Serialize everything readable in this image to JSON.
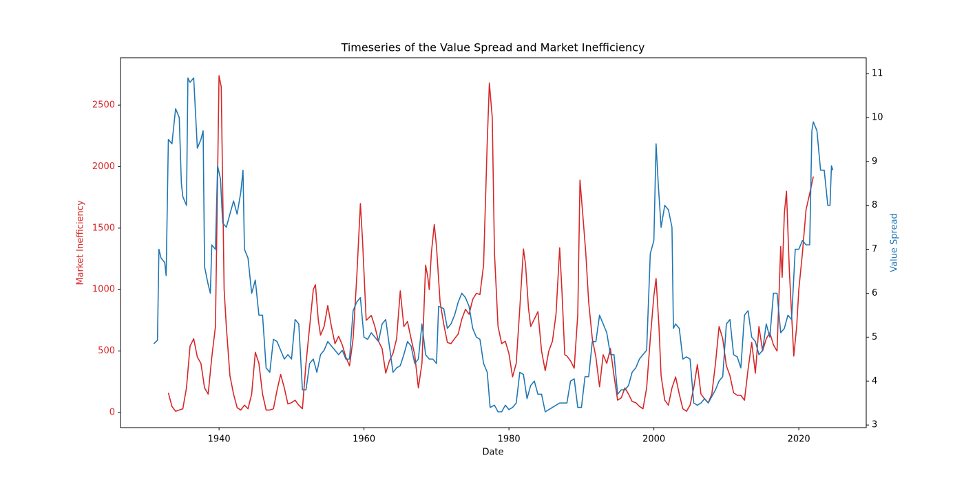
{
  "chart_data": {
    "type": "line",
    "title": "Timeseries of the Value Spread and Market Inefficiency",
    "xlabel": "Date",
    "ylabel": "Market Inefficiency",
    "y2label": "Value Spread",
    "ylabel_color": "#d62728",
    "y2label_color": "#1f77b4",
    "xlim": [
      1926.4,
      2029.3
    ],
    "xticks": [
      1940,
      1960,
      1980,
      2000,
      2020
    ],
    "ylim": [
      -123,
      2886
    ],
    "yticks": [
      0,
      500,
      1000,
      1500,
      2000,
      2500
    ],
    "y2lim": [
      2.94,
      11.36
    ],
    "y2ticks": [
      3,
      4,
      5,
      6,
      7,
      8,
      9,
      10,
      11
    ],
    "series": [
      {
        "color": "#d62728",
        "axis": "y",
        "x": [
          1933,
          1933.5,
          1934,
          1935,
          1935.5,
          1936,
          1936.5,
          1937,
          1937.5,
          1938,
          1938.5,
          1939,
          1939.5,
          1940,
          1940.3,
          1940.7,
          1941,
          1941.5,
          1942,
          1942.5,
          1943,
          1943.5,
          1944,
          1944.5,
          1945,
          1945.5,
          1946,
          1946.5,
          1947,
          1947.5,
          1948,
          1948.5,
          1949,
          1949.5,
          1950,
          1950.5,
          1951,
          1951.5,
          1952,
          1952.5,
          1953,
          1953.3,
          1953.7,
          1954,
          1954.5,
          1955,
          1955.5,
          1956,
          1956.5,
          1957,
          1957.5,
          1958,
          1958.5,
          1959,
          1959.5,
          1959.8,
          1960.3,
          1961,
          1961.5,
          1962,
          1962.5,
          1963,
          1963.5,
          1964,
          1964.5,
          1965,
          1965.5,
          1966,
          1966.5,
          1967,
          1967.5,
          1968,
          1968.5,
          1968.8,
          1969,
          1969.3,
          1969.7,
          1970,
          1970.5,
          1971,
          1971.5,
          1972,
          1972.5,
          1973,
          1973.5,
          1974,
          1974.5,
          1975,
          1975.5,
          1976,
          1976.5,
          1977,
          1977.3,
          1977.7,
          1978,
          1978.5,
          1979,
          1979.5,
          1980,
          1980.5,
          1981,
          1981.5,
          1982,
          1982.3,
          1982.7,
          1983,
          1983.5,
          1984,
          1984.5,
          1985,
          1985.5,
          1986,
          1986.5,
          1987,
          1987.3,
          1987.7,
          1988,
          1988.5,
          1989,
          1989.5,
          1989.8,
          1990.2,
          1990.6,
          1991,
          1991.5,
          1992,
          1992.5,
          1993,
          1993.5,
          1994,
          1994.5,
          1995,
          1995.5,
          1996,
          1996.5,
          1997,
          1997.5,
          1998,
          1998.5,
          1999,
          1999.5,
          2000,
          2000.3,
          2000.7,
          2001,
          2001.5,
          2002,
          2002.5,
          2003,
          2003.5,
          2004,
          2004.5,
          2005,
          2005.5,
          2006,
          2006.5,
          2007,
          2007.5,
          2008,
          2008.5,
          2009,
          2009.5,
          2010,
          2010.5,
          2011,
          2011.5,
          2012,
          2012.5,
          2013,
          2013.5,
          2014,
          2014.5,
          2015,
          2015.5,
          2016,
          2016.5,
          2017,
          2017.5,
          2017.7,
          2018,
          2018.3,
          2018.7,
          2019,
          2019.3,
          2019.7,
          2020,
          2020.5,
          2021,
          2021.5,
          2022
        ],
        "values": [
          160,
          50,
          10,
          30,
          200,
          540,
          600,
          450,
          400,
          200,
          150,
          450,
          700,
          2740,
          2650,
          1000,
          700,
          300,
          150,
          40,
          20,
          60,
          30,
          150,
          490,
          400,
          150,
          20,
          20,
          30,
          180,
          310,
          200,
          70,
          80,
          100,
          60,
          30,
          400,
          700,
          1000,
          1040,
          750,
          630,
          700,
          870,
          700,
          560,
          620,
          550,
          450,
          380,
          600,
          1100,
          1700,
          1400,
          750,
          790,
          700,
          580,
          520,
          320,
          420,
          480,
          600,
          990,
          700,
          740,
          600,
          470,
          200,
          400,
          1200,
          1100,
          1000,
          1300,
          1530,
          1350,
          900,
          720,
          570,
          560,
          600,
          640,
          760,
          840,
          800,
          920,
          970,
          960,
          1200,
          2200,
          2680,
          2400,
          1300,
          700,
          560,
          580,
          480,
          290,
          400,
          850,
          1330,
          1200,
          850,
          700,
          760,
          820,
          500,
          340,
          500,
          580,
          800,
          1340,
          1000,
          470,
          460,
          420,
          360,
          800,
          1890,
          1600,
          1300,
          900,
          600,
          450,
          210,
          470,
          400,
          520,
          300,
          100,
          120,
          200,
          150,
          90,
          80,
          50,
          30,
          200,
          600,
          950,
          1090,
          700,
          300,
          100,
          60,
          200,
          290,
          150,
          30,
          10,
          60,
          200,
          390,
          150,
          110,
          80,
          150,
          400,
          700,
          600,
          380,
          300,
          160,
          140,
          140,
          100,
          350,
          570,
          320,
          700,
          500,
          600,
          650,
          550,
          500,
          1350,
          1100,
          1620,
          1800,
          1150,
          800,
          460,
          700,
          1000,
          1300,
          1650,
          1780,
          1920
        ]
      },
      {
        "color": "#1f77b4",
        "axis": "y2",
        "x": [
          1931,
          1931.5,
          1931.7,
          1932,
          1932.5,
          1932.7,
          1933,
          1933.5,
          1934,
          1934.5,
          1934.8,
          1935,
          1935.5,
          1935.7,
          1936,
          1936.5,
          1937,
          1937.5,
          1937.8,
          1938,
          1938.5,
          1938.8,
          1939,
          1939.5,
          1939.8,
          1940.2,
          1940.5,
          1941,
          1941.5,
          1942,
          1942.5,
          1943,
          1943.3,
          1943.5,
          1944,
          1944.5,
          1945,
          1945.5,
          1946,
          1946.5,
          1947,
          1947.5,
          1948,
          1948.5,
          1949,
          1949.5,
          1950,
          1950.5,
          1951,
          1951.5,
          1952,
          1952.5,
          1953,
          1953.5,
          1954,
          1954.5,
          1955,
          1955.5,
          1956,
          1956.5,
          1957,
          1957.5,
          1958,
          1958.5,
          1959,
          1959.5,
          1960,
          1960.5,
          1961,
          1961.5,
          1962,
          1962.5,
          1963,
          1963.5,
          1964,
          1964.5,
          1965,
          1965.5,
          1966,
          1966.5,
          1967,
          1967.5,
          1968,
          1968.5,
          1969,
          1969.5,
          1970,
          1970.3,
          1971,
          1971.5,
          1972,
          1972.5,
          1973,
          1973.5,
          1974,
          1974.5,
          1975,
          1975.5,
          1976,
          1976.5,
          1977,
          1977.4,
          1978,
          1978.5,
          1979,
          1979.5,
          1980,
          1980.5,
          1981,
          1981.5,
          1982,
          1982.5,
          1983,
          1983.5,
          1984,
          1984.5,
          1985,
          1985.5,
          1986,
          1986.5,
          1987,
          1987.5,
          1988,
          1988.5,
          1989,
          1989.5,
          1990,
          1990.5,
          1991,
          1991.5,
          1992,
          1992.5,
          1993,
          1993.5,
          1994,
          1994.5,
          1995,
          1995.5,
          1996,
          1996.5,
          1997,
          1997.5,
          1998,
          1998.5,
          1999,
          1999.5,
          2000,
          2000.3,
          2000.6,
          2001,
          2001.5,
          2002,
          2002.5,
          2002.7,
          2003,
          2003.5,
          2004,
          2004.5,
          2005,
          2005.5,
          2006,
          2006.5,
          2007,
          2007.5,
          2008,
          2008.5,
          2009,
          2009.5,
          2010,
          2010.5,
          2011,
          2011.5,
          2012,
          2012.5,
          2013,
          2013.5,
          2014,
          2014.5,
          2015,
          2015.5,
          2016,
          2016.5,
          2017,
          2017.5,
          2018,
          2018.5,
          2019,
          2019.5,
          2020,
          2020.5,
          2021,
          2021.5,
          2021.8,
          2022,
          2022.5,
          2023,
          2023.5,
          2024,
          2024.3,
          2024.5,
          2024.7
        ],
        "values": [
          4.85,
          4.93,
          7.0,
          6.8,
          6.7,
          6.4,
          9.5,
          9.4,
          10.2,
          10.0,
          8.5,
          8.2,
          8.0,
          10.9,
          10.8,
          10.9,
          9.3,
          9.5,
          9.7,
          6.6,
          6.2,
          6.0,
          7.1,
          7.0,
          8.9,
          8.6,
          7.6,
          7.5,
          7.8,
          8.1,
          7.8,
          8.3,
          8.8,
          7.0,
          6.8,
          6.0,
          6.3,
          5.5,
          5.5,
          4.3,
          4.2,
          4.95,
          4.9,
          4.7,
          4.5,
          4.6,
          4.5,
          5.4,
          5.3,
          3.8,
          3.8,
          4.4,
          4.5,
          4.2,
          4.6,
          4.7,
          4.9,
          4.8,
          4.7,
          4.6,
          4.7,
          4.5,
          4.5,
          5.6,
          5.8,
          5.9,
          5.0,
          4.95,
          5.1,
          5.0,
          4.9,
          5.3,
          5.4,
          4.8,
          4.2,
          4.3,
          4.35,
          4.6,
          4.9,
          4.8,
          4.4,
          4.5,
          5.3,
          4.6,
          4.5,
          4.5,
          4.4,
          5.7,
          5.65,
          5.2,
          5.3,
          5.5,
          5.8,
          6.0,
          5.9,
          5.7,
          5.2,
          5.0,
          4.95,
          4.4,
          4.2,
          3.4,
          3.45,
          3.3,
          3.3,
          3.45,
          3.35,
          3.4,
          3.5,
          4.2,
          4.15,
          3.6,
          3.9,
          4.0,
          3.7,
          3.7,
          3.3,
          3.35,
          3.4,
          3.45,
          3.5,
          3.5,
          3.5,
          4.0,
          4.05,
          3.4,
          3.4,
          4.1,
          4.1,
          4.9,
          4.9,
          5.5,
          5.3,
          5.1,
          4.6,
          4.6,
          3.7,
          3.8,
          3.8,
          3.9,
          4.2,
          4.3,
          4.5,
          4.6,
          4.7,
          6.9,
          7.2,
          9.4,
          8.5,
          7.5,
          8.0,
          7.9,
          7.5,
          5.2,
          5.3,
          5.2,
          4.5,
          4.55,
          4.5,
          3.5,
          3.45,
          3.5,
          3.6,
          3.5,
          3.65,
          3.8,
          4.0,
          4.1,
          5.3,
          5.4,
          4.6,
          4.55,
          4.3,
          5.5,
          5.6,
          5.0,
          4.9,
          4.6,
          4.7,
          5.3,
          5.0,
          6.0,
          6.0,
          5.1,
          5.2,
          5.5,
          5.4,
          7.0,
          7.0,
          7.2,
          7.1,
          7.1,
          9.7,
          9.9,
          9.7,
          8.8,
          8.8,
          8.0,
          8.0,
          8.9,
          8.8
        ]
      }
    ]
  }
}
